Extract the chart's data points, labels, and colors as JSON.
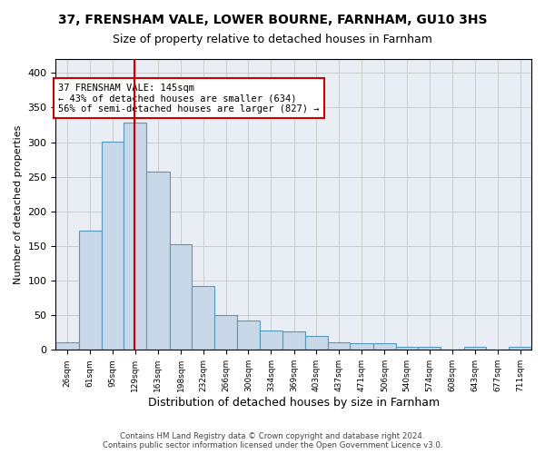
{
  "title": "37, FRENSHAM VALE, LOWER BOURNE, FARNHAM, GU10 3HS",
  "subtitle": "Size of property relative to detached houses in Farnham",
  "xlabel": "Distribution of detached houses by size in Farnham",
  "ylabel": "Number of detached properties",
  "bar_color": "#c8d8e8",
  "bar_edge_color": "#5599bb",
  "bar_heights": [
    11,
    172,
    301,
    328,
    258,
    153,
    92,
    50,
    43,
    28,
    27,
    20,
    11,
    9,
    9,
    4,
    4,
    1,
    4,
    0,
    4
  ],
  "bin_labels": [
    "26sqm",
    "61sqm",
    "95sqm",
    "129sqm",
    "163sqm",
    "198sqm",
    "232sqm",
    "266sqm",
    "300sqm",
    "334sqm",
    "369sqm",
    "403sqm",
    "437sqm",
    "471sqm",
    "506sqm",
    "540sqm",
    "574sqm",
    "608sqm",
    "643sqm",
    "677sqm",
    "711sqm"
  ],
  "bin_edges": [
    26,
    61,
    95,
    129,
    163,
    198,
    232,
    266,
    300,
    334,
    369,
    403,
    437,
    471,
    506,
    540,
    574,
    608,
    643,
    677,
    711,
    745
  ],
  "ylim": [
    0,
    420
  ],
  "yticks": [
    0,
    50,
    100,
    150,
    200,
    250,
    300,
    350,
    400
  ],
  "property_sqm": 145,
  "annotation_text": "37 FRENSHAM VALE: 145sqm\n← 43% of detached houses are smaller (634)\n56% of semi-detached houses are larger (827) →",
  "annotation_box_color": "#ffffff",
  "annotation_box_edge_color": "#cc0000",
  "vline_color": "#cc0000",
  "grid_color": "#cccccc",
  "background_color": "#e8eef4",
  "footer_text": "Contains HM Land Registry data © Crown copyright and database right 2024.\nContains public sector information licensed under the Open Government Licence v3.0."
}
